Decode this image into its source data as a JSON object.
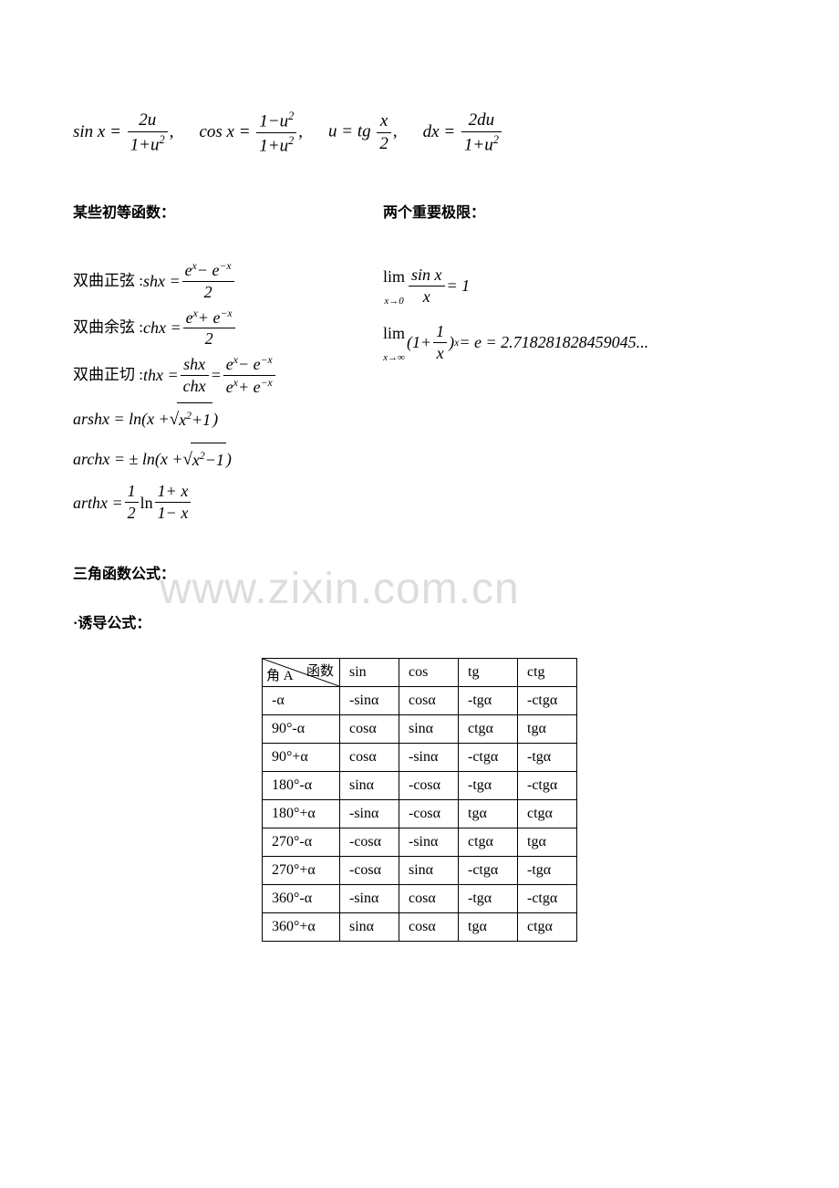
{
  "colors": {
    "text": "#000000",
    "background": "#ffffff",
    "table_border": "#000000",
    "watermark": "rgba(180,180,180,0.45)"
  },
  "typography": {
    "math_font": "Times New Roman",
    "cn_font": "SimSun",
    "body_fontsize": 18,
    "heading_fontsize": 16,
    "watermark_fontsize": 48
  },
  "top_formula": {
    "sinx_num": "2u",
    "sinx_den_left": "1+u",
    "sinx_den_exp": "2",
    "cosx_num_left": "1−u",
    "cosx_num_exp": "2",
    "cosx_den_left": "1+u",
    "cosx_den_exp": "2",
    "u_eq": "u = tg",
    "u_frac_num": "x",
    "u_frac_den": "2",
    "dx_num": "2du",
    "dx_den_left": "1+u",
    "dx_den_exp": "2",
    "sinx_label": "sin x =",
    "cosx_label": "cos x =",
    "dx_label": "dx ="
  },
  "headings": {
    "left": "某些初等函数：",
    "right": "两个重要极限：",
    "trig": "三角函数公式：",
    "induce": "·诱导公式："
  },
  "hyperbolic": {
    "sh_label": "双曲正弦 :",
    "sh_name": "shx =",
    "sh_num": "e",
    "sh_num_exp1": "x",
    "sh_num_mid": "− e",
    "sh_num_exp2": "−x",
    "sh_den": "2",
    "ch_label": "双曲余弦 :",
    "ch_name": "chx =",
    "ch_num": "e",
    "ch_num_exp1": "x",
    "ch_num_mid": "+ e",
    "ch_num_exp2": "−x",
    "ch_den": "2",
    "th_label": "双曲正切 :",
    "th_name": "thx =",
    "th_frac1_num": "shx",
    "th_frac1_den": "chx",
    "th_eq": "=",
    "th_num": "e",
    "th_num_exp1": "x",
    "th_num_mid": "− e",
    "th_num_exp2": "−x",
    "th_den_a": "e",
    "th_den_exp1": "x",
    "th_den_mid": "+ e",
    "th_den_exp2": "−x",
    "arsh": "arshx = ln(x +",
    "arsh_sqrt": "x",
    "arsh_sqrt_exp": "2",
    "arsh_sqrt_tail": "+1",
    "arsh_close": ")",
    "arch": "archx = ± ln(x +",
    "arch_sqrt": "x",
    "arch_sqrt_exp": "2",
    "arch_sqrt_tail": "−1",
    "arch_close": ")",
    "arth": "arthx =",
    "arth_half_num": "1",
    "arth_half_den": "2",
    "arth_ln": "ln",
    "arth_frac_num": "1+ x",
    "arth_frac_den": "1− x"
  },
  "limits": {
    "lim1_var": "x→0",
    "lim1_frac_num": "sin x",
    "lim1_frac_den": "x",
    "lim1_eq": "= 1",
    "lim2_var": "x→∞",
    "lim2_body_a": "(1+",
    "lim2_frac_num": "1",
    "lim2_frac_den": "x",
    "lim2_body_b": ")",
    "lim2_exp": "x",
    "lim2_eq": "= e = 2.718281828459045...",
    "lim_label": "lim"
  },
  "watermark": "www.zixin.com.cn",
  "table": {
    "header_diag_top": "函数",
    "header_diag_bot": "角 A",
    "columns": [
      "sin",
      "cos",
      "tg",
      "ctg"
    ],
    "rows": [
      {
        "angle": "-α",
        "cells": [
          "-sinα",
          "cosα",
          "-tgα",
          "-ctgα"
        ]
      },
      {
        "angle": "90°-α",
        "cells": [
          "cosα",
          "sinα",
          "ctgα",
          "tgα"
        ]
      },
      {
        "angle": "90°+α",
        "cells": [
          "cosα",
          "-sinα",
          "-ctgα",
          "-tgα"
        ]
      },
      {
        "angle": "180°-α",
        "cells": [
          "sinα",
          "-cosα",
          "-tgα",
          "-ctgα"
        ]
      },
      {
        "angle": "180°+α",
        "cells": [
          "-sinα",
          "-cosα",
          "tgα",
          "ctgα"
        ]
      },
      {
        "angle": "270°-α",
        "cells": [
          "-cosα",
          "-sinα",
          "ctgα",
          "tgα"
        ]
      },
      {
        "angle": "270°+α",
        "cells": [
          "-cosα",
          "sinα",
          "-ctgα",
          "-tgα"
        ]
      },
      {
        "angle": "360°-α",
        "cells": [
          "-sinα",
          "cosα",
          "-tgα",
          "-ctgα"
        ]
      },
      {
        "angle": "360°+α",
        "cells": [
          "sinα",
          "cosα",
          "tgα",
          "ctgα"
        ]
      }
    ]
  }
}
